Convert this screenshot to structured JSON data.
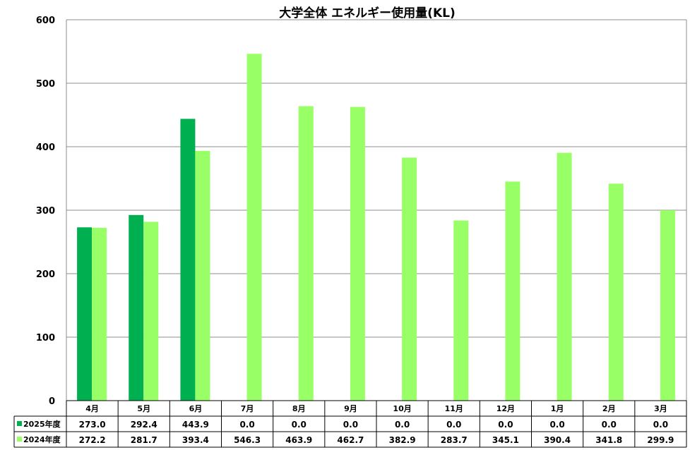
{
  "chart_data": {
    "type": "bar",
    "title": "大学全体 エネルギー使用量(KL)",
    "categories": [
      "4月",
      "5月",
      "6月",
      "7月",
      "8月",
      "9月",
      "10月",
      "11月",
      "12月",
      "1月",
      "2月",
      "3月"
    ],
    "ylim": [
      0,
      600
    ],
    "yticks": [
      0,
      100,
      200,
      300,
      400,
      500,
      600
    ],
    "grid": true,
    "legend": "data-table",
    "series": [
      {
        "name": "2025年度",
        "color": "#00b050",
        "values": [
          273.0,
          292.4,
          443.9,
          0.0,
          0.0,
          0.0,
          0.0,
          0.0,
          0.0,
          0.0,
          0.0,
          0.0
        ],
        "labels": [
          "273.0",
          "292.4",
          "443.9",
          "0.0",
          "0.0",
          "0.0",
          "0.0",
          "0.0",
          "0.0",
          "0.0",
          "0.0",
          "0.0"
        ]
      },
      {
        "name": "2024年度",
        "color": "#99ff66",
        "values": [
          272.2,
          281.7,
          393.4,
          546.3,
          463.9,
          462.7,
          382.9,
          283.7,
          345.1,
          390.4,
          341.8,
          299.9
        ],
        "labels": [
          "272.2",
          "281.7",
          "393.4",
          "546.3",
          "463.9",
          "462.7",
          "382.9",
          "283.7",
          "345.1",
          "390.4",
          "341.8",
          "299.9"
        ]
      }
    ]
  }
}
